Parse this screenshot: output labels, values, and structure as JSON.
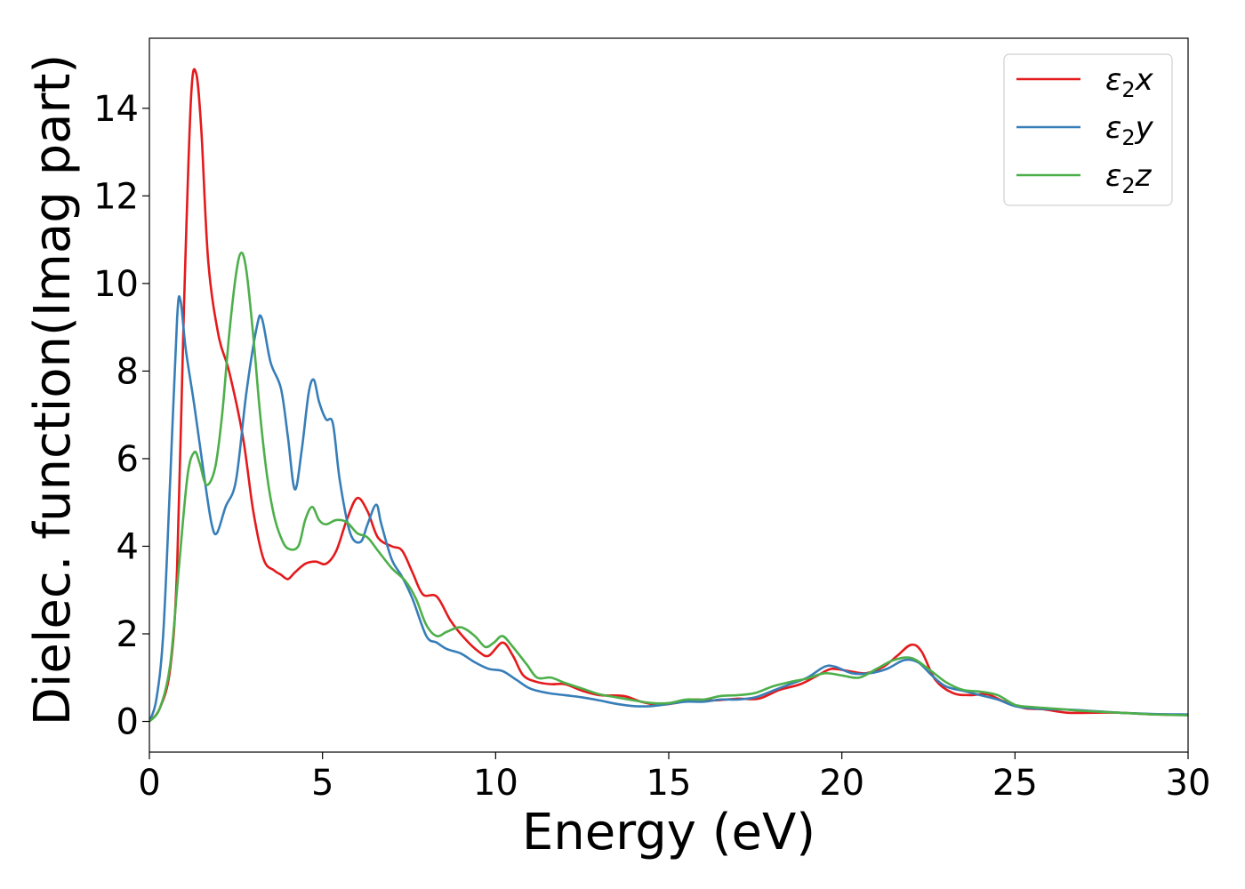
{
  "chart_data": {
    "type": "line",
    "xlabel": "Energy (eV)",
    "ylabel": "Dielec. function(Imag part)",
    "xlim": [
      0,
      30
    ],
    "ylim": [
      -0.7,
      15.6
    ],
    "xticks": [
      0,
      5,
      10,
      15,
      20,
      25,
      30
    ],
    "yticks": [
      0,
      2,
      4,
      6,
      8,
      10,
      12,
      14
    ],
    "grid": false,
    "legend_position": "top-right",
    "series": [
      {
        "name": "ε₂x",
        "legend_base": "ε",
        "legend_sub": "2",
        "legend_axis": "x",
        "color": "#e41a1c",
        "points": [
          [
            0,
            0
          ],
          [
            0.3,
            0.3
          ],
          [
            0.6,
            1.2
          ],
          [
            0.8,
            3.5
          ],
          [
            1.0,
            9.5
          ],
          [
            1.2,
            14.2
          ],
          [
            1.35,
            14.8
          ],
          [
            1.5,
            13.5
          ],
          [
            1.7,
            10.5
          ],
          [
            2.0,
            8.8
          ],
          [
            2.3,
            8.0
          ],
          [
            2.7,
            6.5
          ],
          [
            3.0,
            4.8
          ],
          [
            3.3,
            3.7
          ],
          [
            3.6,
            3.45
          ],
          [
            3.8,
            3.35
          ],
          [
            4.0,
            3.25
          ],
          [
            4.2,
            3.4
          ],
          [
            4.5,
            3.6
          ],
          [
            4.8,
            3.65
          ],
          [
            5.1,
            3.6
          ],
          [
            5.4,
            3.9
          ],
          [
            5.7,
            4.6
          ],
          [
            6.0,
            5.1
          ],
          [
            6.3,
            4.8
          ],
          [
            6.6,
            4.2
          ],
          [
            7.0,
            4.0
          ],
          [
            7.3,
            3.9
          ],
          [
            7.6,
            3.4
          ],
          [
            7.9,
            2.9
          ],
          [
            8.3,
            2.85
          ],
          [
            8.7,
            2.3
          ],
          [
            9.1,
            1.9
          ],
          [
            9.5,
            1.6
          ],
          [
            9.8,
            1.5
          ],
          [
            10.2,
            1.8
          ],
          [
            10.5,
            1.5
          ],
          [
            10.8,
            1.05
          ],
          [
            11.2,
            0.9
          ],
          [
            11.6,
            0.85
          ],
          [
            12.0,
            0.85
          ],
          [
            12.5,
            0.7
          ],
          [
            13.0,
            0.6
          ],
          [
            13.7,
            0.58
          ],
          [
            14.2,
            0.45
          ],
          [
            14.7,
            0.38
          ],
          [
            15.2,
            0.42
          ],
          [
            15.7,
            0.5
          ],
          [
            16.3,
            0.48
          ],
          [
            17.0,
            0.52
          ],
          [
            17.6,
            0.52
          ],
          [
            18.2,
            0.72
          ],
          [
            18.8,
            0.85
          ],
          [
            19.3,
            1.05
          ],
          [
            19.7,
            1.2
          ],
          [
            20.2,
            1.15
          ],
          [
            20.7,
            1.1
          ],
          [
            21.2,
            1.25
          ],
          [
            21.6,
            1.5
          ],
          [
            22.0,
            1.75
          ],
          [
            22.3,
            1.6
          ],
          [
            22.7,
            0.95
          ],
          [
            23.2,
            0.65
          ],
          [
            23.7,
            0.6
          ],
          [
            24.2,
            0.62
          ],
          [
            24.7,
            0.45
          ],
          [
            25.3,
            0.3
          ],
          [
            25.8,
            0.28
          ],
          [
            26.5,
            0.2
          ],
          [
            27.3,
            0.2
          ],
          [
            28.0,
            0.2
          ],
          [
            29.0,
            0.16
          ],
          [
            30.0,
            0.15
          ]
        ]
      },
      {
        "name": "ε₂y",
        "legend_base": "ε",
        "legend_sub": "2",
        "legend_axis": "y",
        "color": "#377eb8",
        "points": [
          [
            0,
            0
          ],
          [
            0.2,
            0.5
          ],
          [
            0.4,
            2.0
          ],
          [
            0.6,
            5.5
          ],
          [
            0.8,
            9.2
          ],
          [
            0.9,
            9.6
          ],
          [
            1.05,
            8.5
          ],
          [
            1.3,
            7.2
          ],
          [
            1.6,
            5.5
          ],
          [
            1.8,
            4.5
          ],
          [
            1.95,
            4.3
          ],
          [
            2.2,
            4.9
          ],
          [
            2.5,
            5.5
          ],
          [
            2.8,
            7.5
          ],
          [
            3.1,
            9.0
          ],
          [
            3.25,
            9.2
          ],
          [
            3.5,
            8.2
          ],
          [
            3.8,
            7.6
          ],
          [
            4.0,
            6.5
          ],
          [
            4.2,
            5.3
          ],
          [
            4.4,
            6.2
          ],
          [
            4.6,
            7.5
          ],
          [
            4.75,
            7.8
          ],
          [
            4.9,
            7.3
          ],
          [
            5.1,
            6.9
          ],
          [
            5.3,
            6.8
          ],
          [
            5.5,
            5.5
          ],
          [
            5.8,
            4.3
          ],
          [
            6.1,
            4.1
          ],
          [
            6.3,
            4.5
          ],
          [
            6.55,
            4.95
          ],
          [
            6.7,
            4.5
          ],
          [
            7.0,
            3.7
          ],
          [
            7.3,
            3.3
          ],
          [
            7.6,
            2.8
          ],
          [
            8.0,
            1.95
          ],
          [
            8.3,
            1.8
          ],
          [
            8.6,
            1.65
          ],
          [
            9.0,
            1.55
          ],
          [
            9.4,
            1.35
          ],
          [
            9.8,
            1.2
          ],
          [
            10.2,
            1.15
          ],
          [
            10.6,
            0.95
          ],
          [
            11.0,
            0.75
          ],
          [
            11.5,
            0.65
          ],
          [
            12.0,
            0.6
          ],
          [
            12.5,
            0.55
          ],
          [
            13.0,
            0.48
          ],
          [
            13.5,
            0.4
          ],
          [
            14.0,
            0.35
          ],
          [
            14.5,
            0.35
          ],
          [
            15.0,
            0.4
          ],
          [
            15.5,
            0.45
          ],
          [
            16.0,
            0.45
          ],
          [
            16.5,
            0.5
          ],
          [
            17.0,
            0.5
          ],
          [
            17.5,
            0.55
          ],
          [
            18.0,
            0.7
          ],
          [
            18.5,
            0.85
          ],
          [
            19.0,
            1.0
          ],
          [
            19.5,
            1.25
          ],
          [
            19.8,
            1.25
          ],
          [
            20.3,
            1.1
          ],
          [
            20.8,
            1.1
          ],
          [
            21.3,
            1.2
          ],
          [
            21.8,
            1.4
          ],
          [
            22.2,
            1.35
          ],
          [
            22.6,
            1.05
          ],
          [
            23.0,
            0.8
          ],
          [
            23.5,
            0.7
          ],
          [
            24.0,
            0.6
          ],
          [
            24.5,
            0.5
          ],
          [
            25.0,
            0.35
          ],
          [
            25.5,
            0.3
          ],
          [
            26.0,
            0.28
          ],
          [
            26.5,
            0.27
          ],
          [
            27.0,
            0.25
          ],
          [
            28.0,
            0.2
          ],
          [
            29.0,
            0.17
          ],
          [
            30.0,
            0.16
          ]
        ]
      },
      {
        "name": "ε₂z",
        "legend_base": "ε",
        "legend_sub": "2",
        "legend_axis": "z",
        "color": "#4daf4a",
        "points": [
          [
            0,
            0
          ],
          [
            0.3,
            0.3
          ],
          [
            0.6,
            1.3
          ],
          [
            0.85,
            3.5
          ],
          [
            1.1,
            5.6
          ],
          [
            1.3,
            6.15
          ],
          [
            1.45,
            5.9
          ],
          [
            1.65,
            5.4
          ],
          [
            1.9,
            5.8
          ],
          [
            2.1,
            7.0
          ],
          [
            2.3,
            8.8
          ],
          [
            2.5,
            10.2
          ],
          [
            2.65,
            10.7
          ],
          [
            2.8,
            10.3
          ],
          [
            3.0,
            8.8
          ],
          [
            3.2,
            7.0
          ],
          [
            3.4,
            5.6
          ],
          [
            3.6,
            4.7
          ],
          [
            3.8,
            4.2
          ],
          [
            4.0,
            3.95
          ],
          [
            4.3,
            4.0
          ],
          [
            4.5,
            4.6
          ],
          [
            4.7,
            4.9
          ],
          [
            4.9,
            4.6
          ],
          [
            5.1,
            4.5
          ],
          [
            5.4,
            4.6
          ],
          [
            5.7,
            4.55
          ],
          [
            6.0,
            4.3
          ],
          [
            6.3,
            4.2
          ],
          [
            6.6,
            3.9
          ],
          [
            7.0,
            3.5
          ],
          [
            7.4,
            3.2
          ],
          [
            7.7,
            2.8
          ],
          [
            8.0,
            2.2
          ],
          [
            8.3,
            1.95
          ],
          [
            8.6,
            2.05
          ],
          [
            9.0,
            2.15
          ],
          [
            9.4,
            1.95
          ],
          [
            9.7,
            1.7
          ],
          [
            9.95,
            1.8
          ],
          [
            10.2,
            1.95
          ],
          [
            10.5,
            1.7
          ],
          [
            10.9,
            1.3
          ],
          [
            11.2,
            1.0
          ],
          [
            11.6,
            1.0
          ],
          [
            12.0,
            0.88
          ],
          [
            12.5,
            0.75
          ],
          [
            13.0,
            0.62
          ],
          [
            13.5,
            0.55
          ],
          [
            14.0,
            0.48
          ],
          [
            14.5,
            0.42
          ],
          [
            15.0,
            0.42
          ],
          [
            15.5,
            0.5
          ],
          [
            16.0,
            0.5
          ],
          [
            16.5,
            0.58
          ],
          [
            17.0,
            0.6
          ],
          [
            17.5,
            0.65
          ],
          [
            18.0,
            0.8
          ],
          [
            18.5,
            0.9
          ],
          [
            19.0,
            0.98
          ],
          [
            19.5,
            1.1
          ],
          [
            20.0,
            1.05
          ],
          [
            20.5,
            1.0
          ],
          [
            21.0,
            1.2
          ],
          [
            21.5,
            1.4
          ],
          [
            22.0,
            1.45
          ],
          [
            22.5,
            1.2
          ],
          [
            23.0,
            0.9
          ],
          [
            23.5,
            0.72
          ],
          [
            24.0,
            0.68
          ],
          [
            24.5,
            0.6
          ],
          [
            25.0,
            0.38
          ],
          [
            25.5,
            0.33
          ],
          [
            26.0,
            0.3
          ],
          [
            26.5,
            0.27
          ],
          [
            27.0,
            0.24
          ],
          [
            28.0,
            0.2
          ],
          [
            29.0,
            0.16
          ],
          [
            30.0,
            0.14
          ]
        ]
      }
    ]
  }
}
